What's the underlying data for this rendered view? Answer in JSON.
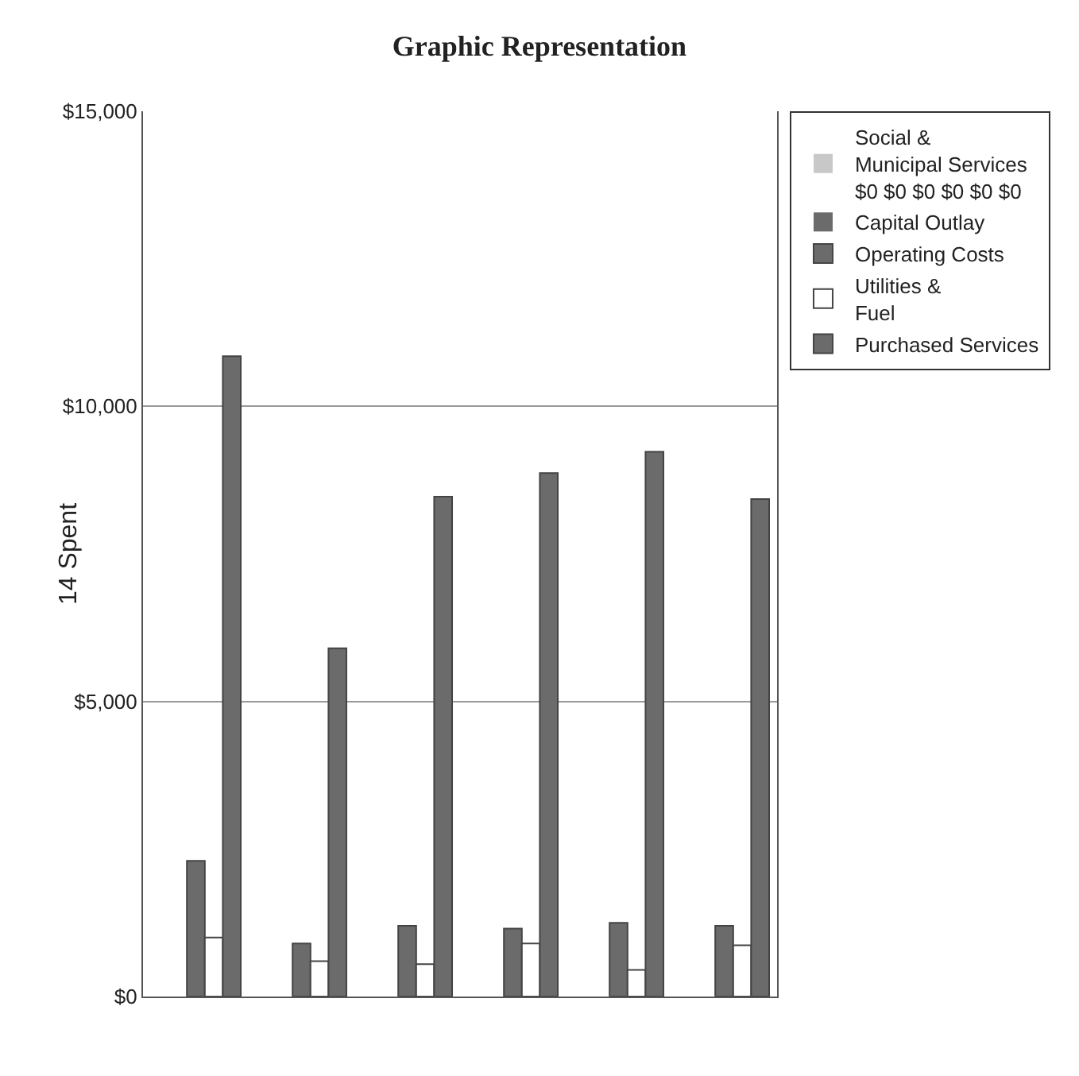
{
  "chart_data": {
    "type": "bar",
    "title": "Graphic Representation",
    "ylabel": "14 Spent",
    "categories": [
      null,
      null,
      null,
      null,
      null,
      null
    ],
    "series": [
      {
        "name": "Social & Municipal Services $0 $0 $0 $0 $0 $0",
        "color": "#c8c8c8",
        "values": [
          0,
          0,
          0,
          0,
          0,
          0
        ]
      },
      {
        "name": "Capital Outlay",
        "color": "#6b6b6b",
        "values": [
          0,
          0,
          0,
          0,
          0,
          0
        ]
      },
      {
        "name": "Operating Costs",
        "color": "#6b6b6b",
        "values": [
          2300,
          900,
          1200,
          1150,
          1250,
          1200
        ]
      },
      {
        "name": "Utilities & Fuel",
        "color": "#ffffff",
        "values": [
          1000,
          600,
          550,
          900,
          450,
          870
        ]
      },
      {
        "name": "Purchased Services",
        "color": "#6b6b6b",
        "values": [
          10850,
          5900,
          8470,
          8870,
          9230,
          8430
        ]
      }
    ],
    "ylim": [
      0,
      15000
    ],
    "yticks": [
      {
        "value": 0,
        "label": "$0"
      },
      {
        "value": 5000,
        "label": "$5,000"
      },
      {
        "value": 10000,
        "label": "$10,000"
      },
      {
        "value": 15000,
        "label": "$15,000"
      }
    ],
    "grid": "y",
    "legend": "right"
  }
}
